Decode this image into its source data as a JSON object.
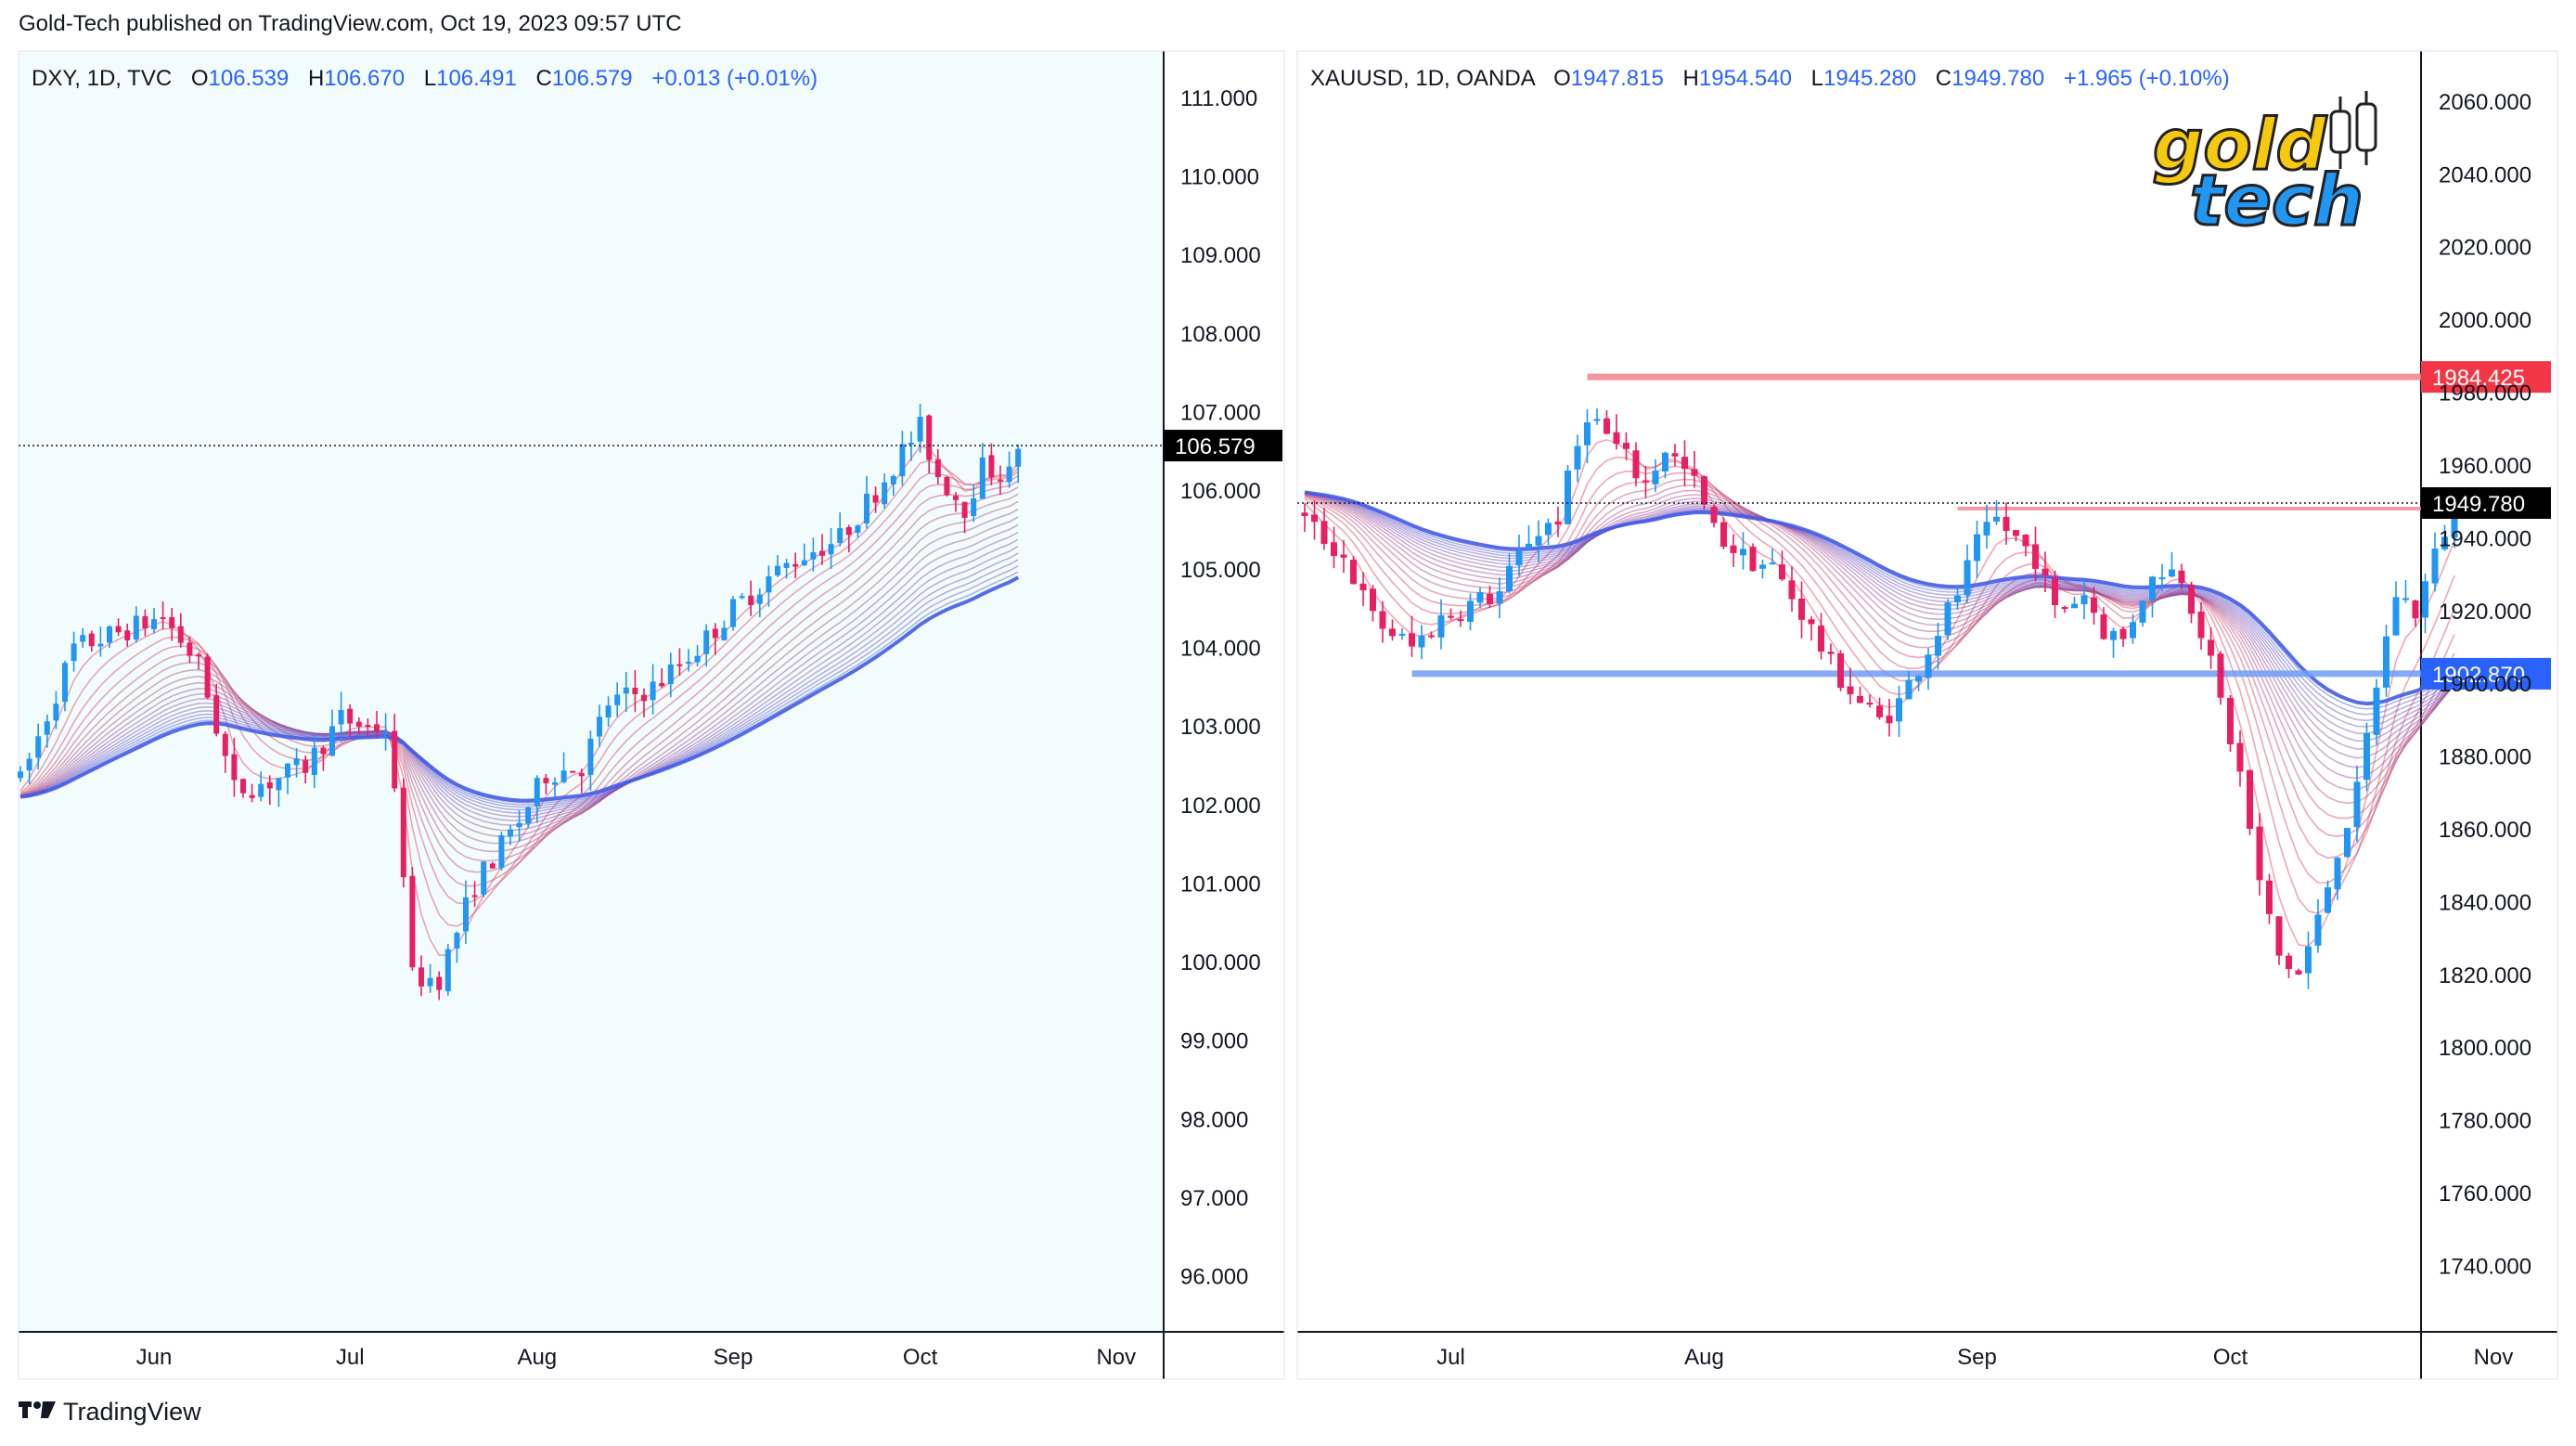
{
  "header": {
    "published_text": "Gold-Tech published on TradingView.com, Oct 19, 2023 09:57 UTC"
  },
  "footer": {
    "brand": "TradingView"
  },
  "colors": {
    "up": "#2196f3",
    "down": "#e91e63",
    "panel_bg": "#f3fcfd",
    "axis": "#131722",
    "ribbon_red": "#e53950",
    "ribbon_blue": "#2962ff",
    "res_line": "#f0838f",
    "sup_line": "#6f9cf7"
  },
  "logo": {
    "line1": "gold",
    "line2": "tech"
  },
  "chart_data": [
    {
      "type": "candlestick",
      "symbol": "DXY",
      "timeframe": "1D",
      "exchange": "TVC",
      "legend": {
        "symbol": "DXY, 1D, TVC",
        "o_label": "O",
        "o": "106.539",
        "h_label": "H",
        "h": "106.670",
        "l_label": "L",
        "l": "106.491",
        "c_label": "C",
        "c": "106.579",
        "change": "+0.013 (+0.01%)"
      },
      "ylim": [
        95.3,
        111.6
      ],
      "y_ticks": [
        "111.000",
        "110.000",
        "109.000",
        "108.000",
        "107.000",
        "106.000",
        "105.000",
        "104.000",
        "103.000",
        "102.000",
        "101.000",
        "100.000",
        "99.000",
        "98.000",
        "97.000",
        "96.000"
      ],
      "y_tick_values": [
        111,
        110,
        109,
        108,
        107,
        106,
        105,
        104,
        103,
        102,
        101,
        100,
        99,
        98,
        97,
        96
      ],
      "x_month_labels": [
        {
          "label": "Jun",
          "index": 15
        },
        {
          "label": "Jul",
          "index": 37
        },
        {
          "label": "Aug",
          "index": 58
        },
        {
          "label": "Sep",
          "index": 80
        },
        {
          "label": "Oct",
          "index": 101
        },
        {
          "label": "Nov",
          "index": 123
        }
      ],
      "last_price": "106.579",
      "last_price_value": 106.579,
      "close_path": [
        [
          0,
          102.3
        ],
        [
          6,
          104.0
        ],
        [
          11,
          104.2
        ],
        [
          16,
          104.4
        ],
        [
          20,
          103.8
        ],
        [
          24,
          102.2
        ],
        [
          28,
          102.3
        ],
        [
          32,
          102.5
        ],
        [
          36,
          103.1
        ],
        [
          39,
          103.0
        ],
        [
          41,
          103.0
        ],
        [
          43,
          101.2
        ],
        [
          44,
          99.8
        ],
        [
          47,
          99.8
        ],
        [
          51,
          101.0
        ],
        [
          56,
          101.8
        ],
        [
          59,
          102.4
        ],
        [
          63,
          102.5
        ],
        [
          66,
          103.3
        ],
        [
          71,
          103.5
        ],
        [
          76,
          104.0
        ],
        [
          80,
          104.5
        ],
        [
          84,
          104.9
        ],
        [
          88,
          105.2
        ],
        [
          92,
          105.4
        ],
        [
          96,
          106.0
        ],
        [
          99,
          106.5
        ],
        [
          101,
          106.8
        ],
        [
          103,
          106.2
        ],
        [
          106,
          105.8
        ],
        [
          108,
          106.3
        ],
        [
          111,
          106.2
        ],
        [
          112,
          106.6
        ]
      ],
      "ribbon_start": 102.1,
      "ribbon_end_fast": 106.4,
      "ribbon_end_slow": 104.7
    },
    {
      "type": "candlestick",
      "symbol": "XAUUSD",
      "timeframe": "1D",
      "exchange": "OANDA",
      "legend": {
        "symbol": "XAUUSD, 1D, OANDA",
        "o_label": "O",
        "o": "1947.815",
        "h_label": "H",
        "h": "1954.540",
        "l_label": "L",
        "l": "1945.280",
        "c_label": "C",
        "c": "1949.780",
        "change": "+1.965 (+0.10%)"
      },
      "ylim": [
        1722,
        2074
      ],
      "y_ticks": [
        "2060.000",
        "2040.000",
        "2020.000",
        "2000.000",
        "1980.000",
        "1960.000",
        "1940.000",
        "1920.000",
        "1900.000",
        "1880.000",
        "1860.000",
        "1840.000",
        "1820.000",
        "1800.000",
        "1780.000",
        "1760.000",
        "1740.000"
      ],
      "y_tick_values": [
        2060,
        2040,
        2020,
        2000,
        1980,
        1960,
        1940,
        1920,
        1900,
        1880,
        1860,
        1840,
        1820,
        1800,
        1780,
        1760,
        1740
      ],
      "x_month_labels": [
        {
          "label": "Jul",
          "index": 15
        },
        {
          "label": "Aug",
          "index": 41
        },
        {
          "label": "Sep",
          "index": 69
        },
        {
          "label": "Oct",
          "index": 95
        },
        {
          "label": "Nov",
          "index": 122
        }
      ],
      "last_price": "1949.780",
      "last_price_value": 1949.78,
      "resistance": {
        "label": "1984.425",
        "value": 1984.425,
        "from_index": 29
      },
      "support": {
        "label": "1902.870",
        "value": 1902.87,
        "from_index": 11
      },
      "close_path": [
        [
          0,
          1945
        ],
        [
          4,
          1935
        ],
        [
          7,
          1918
        ],
        [
          11,
          1910
        ],
        [
          14,
          1918
        ],
        [
          17,
          1922
        ],
        [
          20,
          1925
        ],
        [
          23,
          1940
        ],
        [
          26,
          1946
        ],
        [
          29,
          1975
        ],
        [
          32,
          1965
        ],
        [
          35,
          1955
        ],
        [
          37,
          1965
        ],
        [
          40,
          1955
        ],
        [
          42,
          1942
        ],
        [
          45,
          1935
        ],
        [
          48,
          1932
        ],
        [
          51,
          1920
        ],
        [
          54,
          1905
        ],
        [
          57,
          1895
        ],
        [
          59,
          1890
        ],
        [
          61,
          1895
        ],
        [
          63,
          1905
        ],
        [
          65,
          1915
        ],
        [
          67,
          1925
        ],
        [
          69,
          1938
        ],
        [
          71,
          1945
        ],
        [
          73,
          1940
        ],
        [
          75,
          1935
        ],
        [
          77,
          1920
        ],
        [
          80,
          1925
        ],
        [
          82,
          1915
        ],
        [
          84,
          1912
        ],
        [
          86,
          1925
        ],
        [
          88,
          1932
        ],
        [
          90,
          1930
        ],
        [
          92,
          1915
        ],
        [
          94,
          1895
        ],
        [
          96,
          1875
        ],
        [
          98,
          1845
        ],
        [
          100,
          1825
        ],
        [
          102,
          1820
        ],
        [
          104,
          1835
        ],
        [
          106,
          1855
        ],
        [
          108,
          1870
        ],
        [
          110,
          1900
        ],
        [
          112,
          1925
        ],
        [
          114,
          1920
        ],
        [
          116,
          1935
        ],
        [
          118,
          1950
        ]
      ],
      "ribbon_start": 1953,
      "ribbon_end_fast": 1935,
      "ribbon_end_slow": 1904
    }
  ]
}
